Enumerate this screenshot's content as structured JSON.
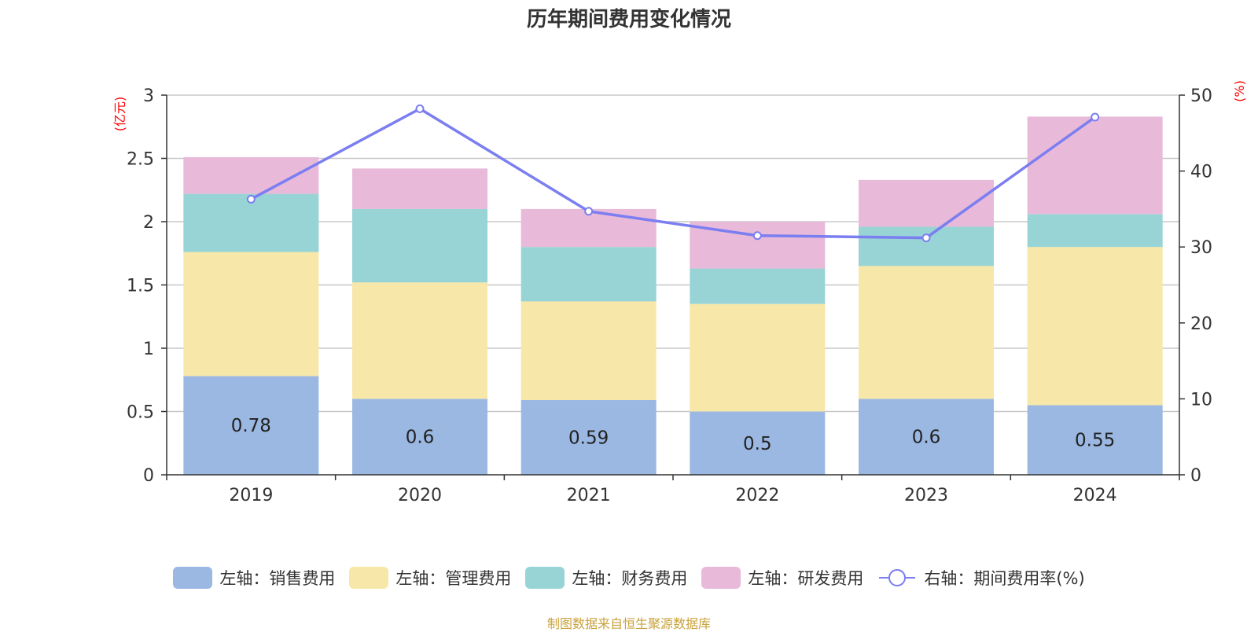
{
  "chart_data": {
    "type": "bar",
    "stacked": true,
    "title": "历年期间费用变化情况",
    "categories": [
      "2019",
      "2020",
      "2021",
      "2022",
      "2023",
      "2024"
    ],
    "left_axis": {
      "unit_label": "(亿元)",
      "ylim": [
        0,
        3
      ],
      "ticks": [
        0,
        0.5,
        1,
        1.5,
        2,
        2.5,
        3
      ],
      "tick_labels": [
        "0",
        "0.5",
        "1",
        "1.5",
        "2",
        "2.5",
        "3"
      ]
    },
    "right_axis": {
      "unit_label": "(%)",
      "ylim": [
        0,
        50
      ],
      "ticks": [
        0,
        10,
        20,
        30,
        40,
        50
      ],
      "tick_labels": [
        "0",
        "10",
        "20",
        "30",
        "40",
        "50"
      ]
    },
    "series": [
      {
        "name": "左轴：销售费用",
        "axis": "left",
        "color": "#9bb8e2",
        "values": [
          0.78,
          0.6,
          0.59,
          0.5,
          0.6,
          0.55
        ],
        "data_labels": [
          "0.78",
          "0.6",
          "0.59",
          "0.5",
          "0.6",
          "0.55"
        ]
      },
      {
        "name": "左轴：管理费用",
        "axis": "left",
        "color": "#f7e7a8",
        "values": [
          0.98,
          0.92,
          0.78,
          0.85,
          1.05,
          1.25
        ]
      },
      {
        "name": "左轴：财务费用",
        "axis": "left",
        "color": "#98d4d5",
        "values": [
          0.46,
          0.58,
          0.43,
          0.28,
          0.31,
          0.26
        ]
      },
      {
        "name": "左轴：研发费用",
        "axis": "left",
        "color": "#e8b9d9",
        "values": [
          0.29,
          0.32,
          0.3,
          0.37,
          0.37,
          0.77
        ]
      },
      {
        "name": "右轴：期间费用率(%)",
        "axis": "right",
        "type": "line",
        "color": "#7b7ef0",
        "values": [
          36.3,
          48.2,
          34.7,
          31.5,
          31.2,
          47.1
        ]
      }
    ],
    "legend_position": "bottom",
    "grid": true
  },
  "source_note": "制图数据来自恒生聚源数据库"
}
